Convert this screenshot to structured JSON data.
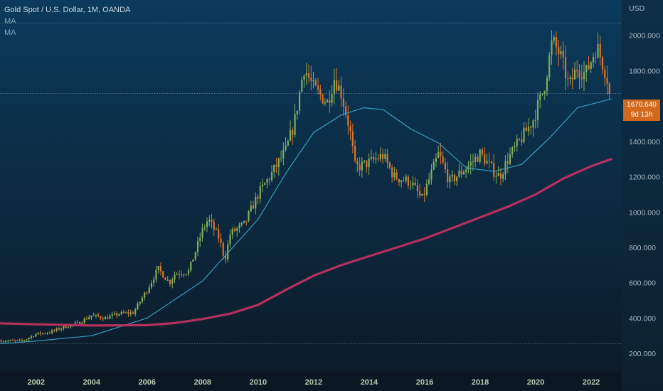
{
  "legend": {
    "title": "Gold Spot / U.S. Dollar, 1M, OANDA",
    "ma1": "MA",
    "ma2": "MA"
  },
  "price_tag": {
    "price": "1670.640",
    "countdown": "9d 13h"
  },
  "colors": {
    "background_top": "#0b3a5c",
    "background_bottom": "#0c1a26",
    "up_candle": "#7fae5a",
    "down_candle": "#d9722c",
    "ma_short": "#3aa6c9",
    "ma_long": "#b5305f",
    "price_tag": "#d2691e"
  },
  "chart_data": {
    "type": "candlestick",
    "title": "Gold Spot / U.S. Dollar, 1M, OANDA",
    "y_unit": "USD",
    "x_ticks": [
      "2002",
      "2004",
      "2006",
      "2008",
      "2010",
      "2012",
      "2014",
      "2016",
      "2018",
      "2020",
      "2022"
    ],
    "y_ticks": [
      "200.000",
      "400.000",
      "600.000",
      "800.000",
      "1000.000",
      "1200.000",
      "1400.000",
      "1600.000",
      "1800.000",
      "2000.000"
    ],
    "x_range": [
      2000.7,
      2023.1
    ],
    "y_range": [
      100,
      2200
    ],
    "last_price": 1670.64,
    "reference_lines": [
      2070,
      255,
      1670.64
    ],
    "price_anchors": [
      [
        2000.7,
        272
      ],
      [
        2001.5,
        270
      ],
      [
        2002.0,
        310
      ],
      [
        2002.5,
        320
      ],
      [
        2003.0,
        350
      ],
      [
        2003.5,
        370
      ],
      [
        2004.0,
        415
      ],
      [
        2004.5,
        400
      ],
      [
        2005.0,
        425
      ],
      [
        2005.5,
        430
      ],
      [
        2006.0,
        560
      ],
      [
        2006.4,
        680
      ],
      [
        2006.8,
        600
      ],
      [
        2007.0,
        650
      ],
      [
        2007.5,
        665
      ],
      [
        2008.0,
        900
      ],
      [
        2008.2,
        960
      ],
      [
        2008.6,
        850
      ],
      [
        2008.8,
        730
      ],
      [
        2009.0,
        880
      ],
      [
        2009.5,
        930
      ],
      [
        2010.0,
        1100
      ],
      [
        2010.5,
        1220
      ],
      [
        2011.0,
        1350
      ],
      [
        2011.3,
        1500
      ],
      [
        2011.65,
        1820
      ],
      [
        2012.0,
        1700
      ],
      [
        2012.5,
        1620
      ],
      [
        2012.75,
        1760
      ],
      [
        2013.0,
        1670
      ],
      [
        2013.3,
        1470
      ],
      [
        2013.5,
        1250
      ],
      [
        2014.0,
        1280
      ],
      [
        2014.5,
        1320
      ],
      [
        2014.9,
        1200
      ],
      [
        2015.5,
        1170
      ],
      [
        2015.9,
        1070
      ],
      [
        2016.5,
        1330
      ],
      [
        2016.9,
        1170
      ],
      [
        2017.5,
        1250
      ],
      [
        2018.0,
        1330
      ],
      [
        2018.5,
        1230
      ],
      [
        2018.7,
        1200
      ],
      [
        2019.0,
        1300
      ],
      [
        2019.5,
        1420
      ],
      [
        2019.9,
        1520
      ],
      [
        2020.3,
        1700
      ],
      [
        2020.6,
        1970
      ],
      [
        2020.9,
        1880
      ],
      [
        2021.2,
        1710
      ],
      [
        2021.5,
        1820
      ],
      [
        2021.8,
        1780
      ],
      [
        2022.2,
        1940
      ],
      [
        2022.5,
        1800
      ],
      [
        2022.72,
        1670
      ]
    ],
    "series": [
      {
        "name": "MA",
        "points": [
          [
            2000.7,
            255
          ],
          [
            2002.0,
            270
          ],
          [
            2004.0,
            300
          ],
          [
            2006.0,
            400
          ],
          [
            2008.0,
            610
          ],
          [
            2010.0,
            960
          ],
          [
            2011.0,
            1220
          ],
          [
            2012.0,
            1450
          ],
          [
            2013.0,
            1550
          ],
          [
            2013.8,
            1590
          ],
          [
            2014.5,
            1580
          ],
          [
            2015.5,
            1470
          ],
          [
            2016.5,
            1390
          ],
          [
            2017.5,
            1250
          ],
          [
            2018.5,
            1230
          ],
          [
            2019.5,
            1270
          ],
          [
            2020.5,
            1420
          ],
          [
            2021.5,
            1590
          ],
          [
            2022.72,
            1640
          ]
        ]
      },
      {
        "name": "MA",
        "points": [
          [
            2000.7,
            370
          ],
          [
            2002.0,
            365
          ],
          [
            2004.0,
            358
          ],
          [
            2006.0,
            360
          ],
          [
            2007.0,
            372
          ],
          [
            2008.0,
            395
          ],
          [
            2009.0,
            425
          ],
          [
            2010.0,
            475
          ],
          [
            2011.0,
            560
          ],
          [
            2012.0,
            640
          ],
          [
            2013.0,
            700
          ],
          [
            2014.0,
            750
          ],
          [
            2015.0,
            800
          ],
          [
            2016.0,
            850
          ],
          [
            2017.0,
            910
          ],
          [
            2018.0,
            970
          ],
          [
            2019.0,
            1030
          ],
          [
            2020.0,
            1100
          ],
          [
            2021.0,
            1190
          ],
          [
            2022.0,
            1260
          ],
          [
            2022.72,
            1300
          ]
        ]
      }
    ]
  }
}
